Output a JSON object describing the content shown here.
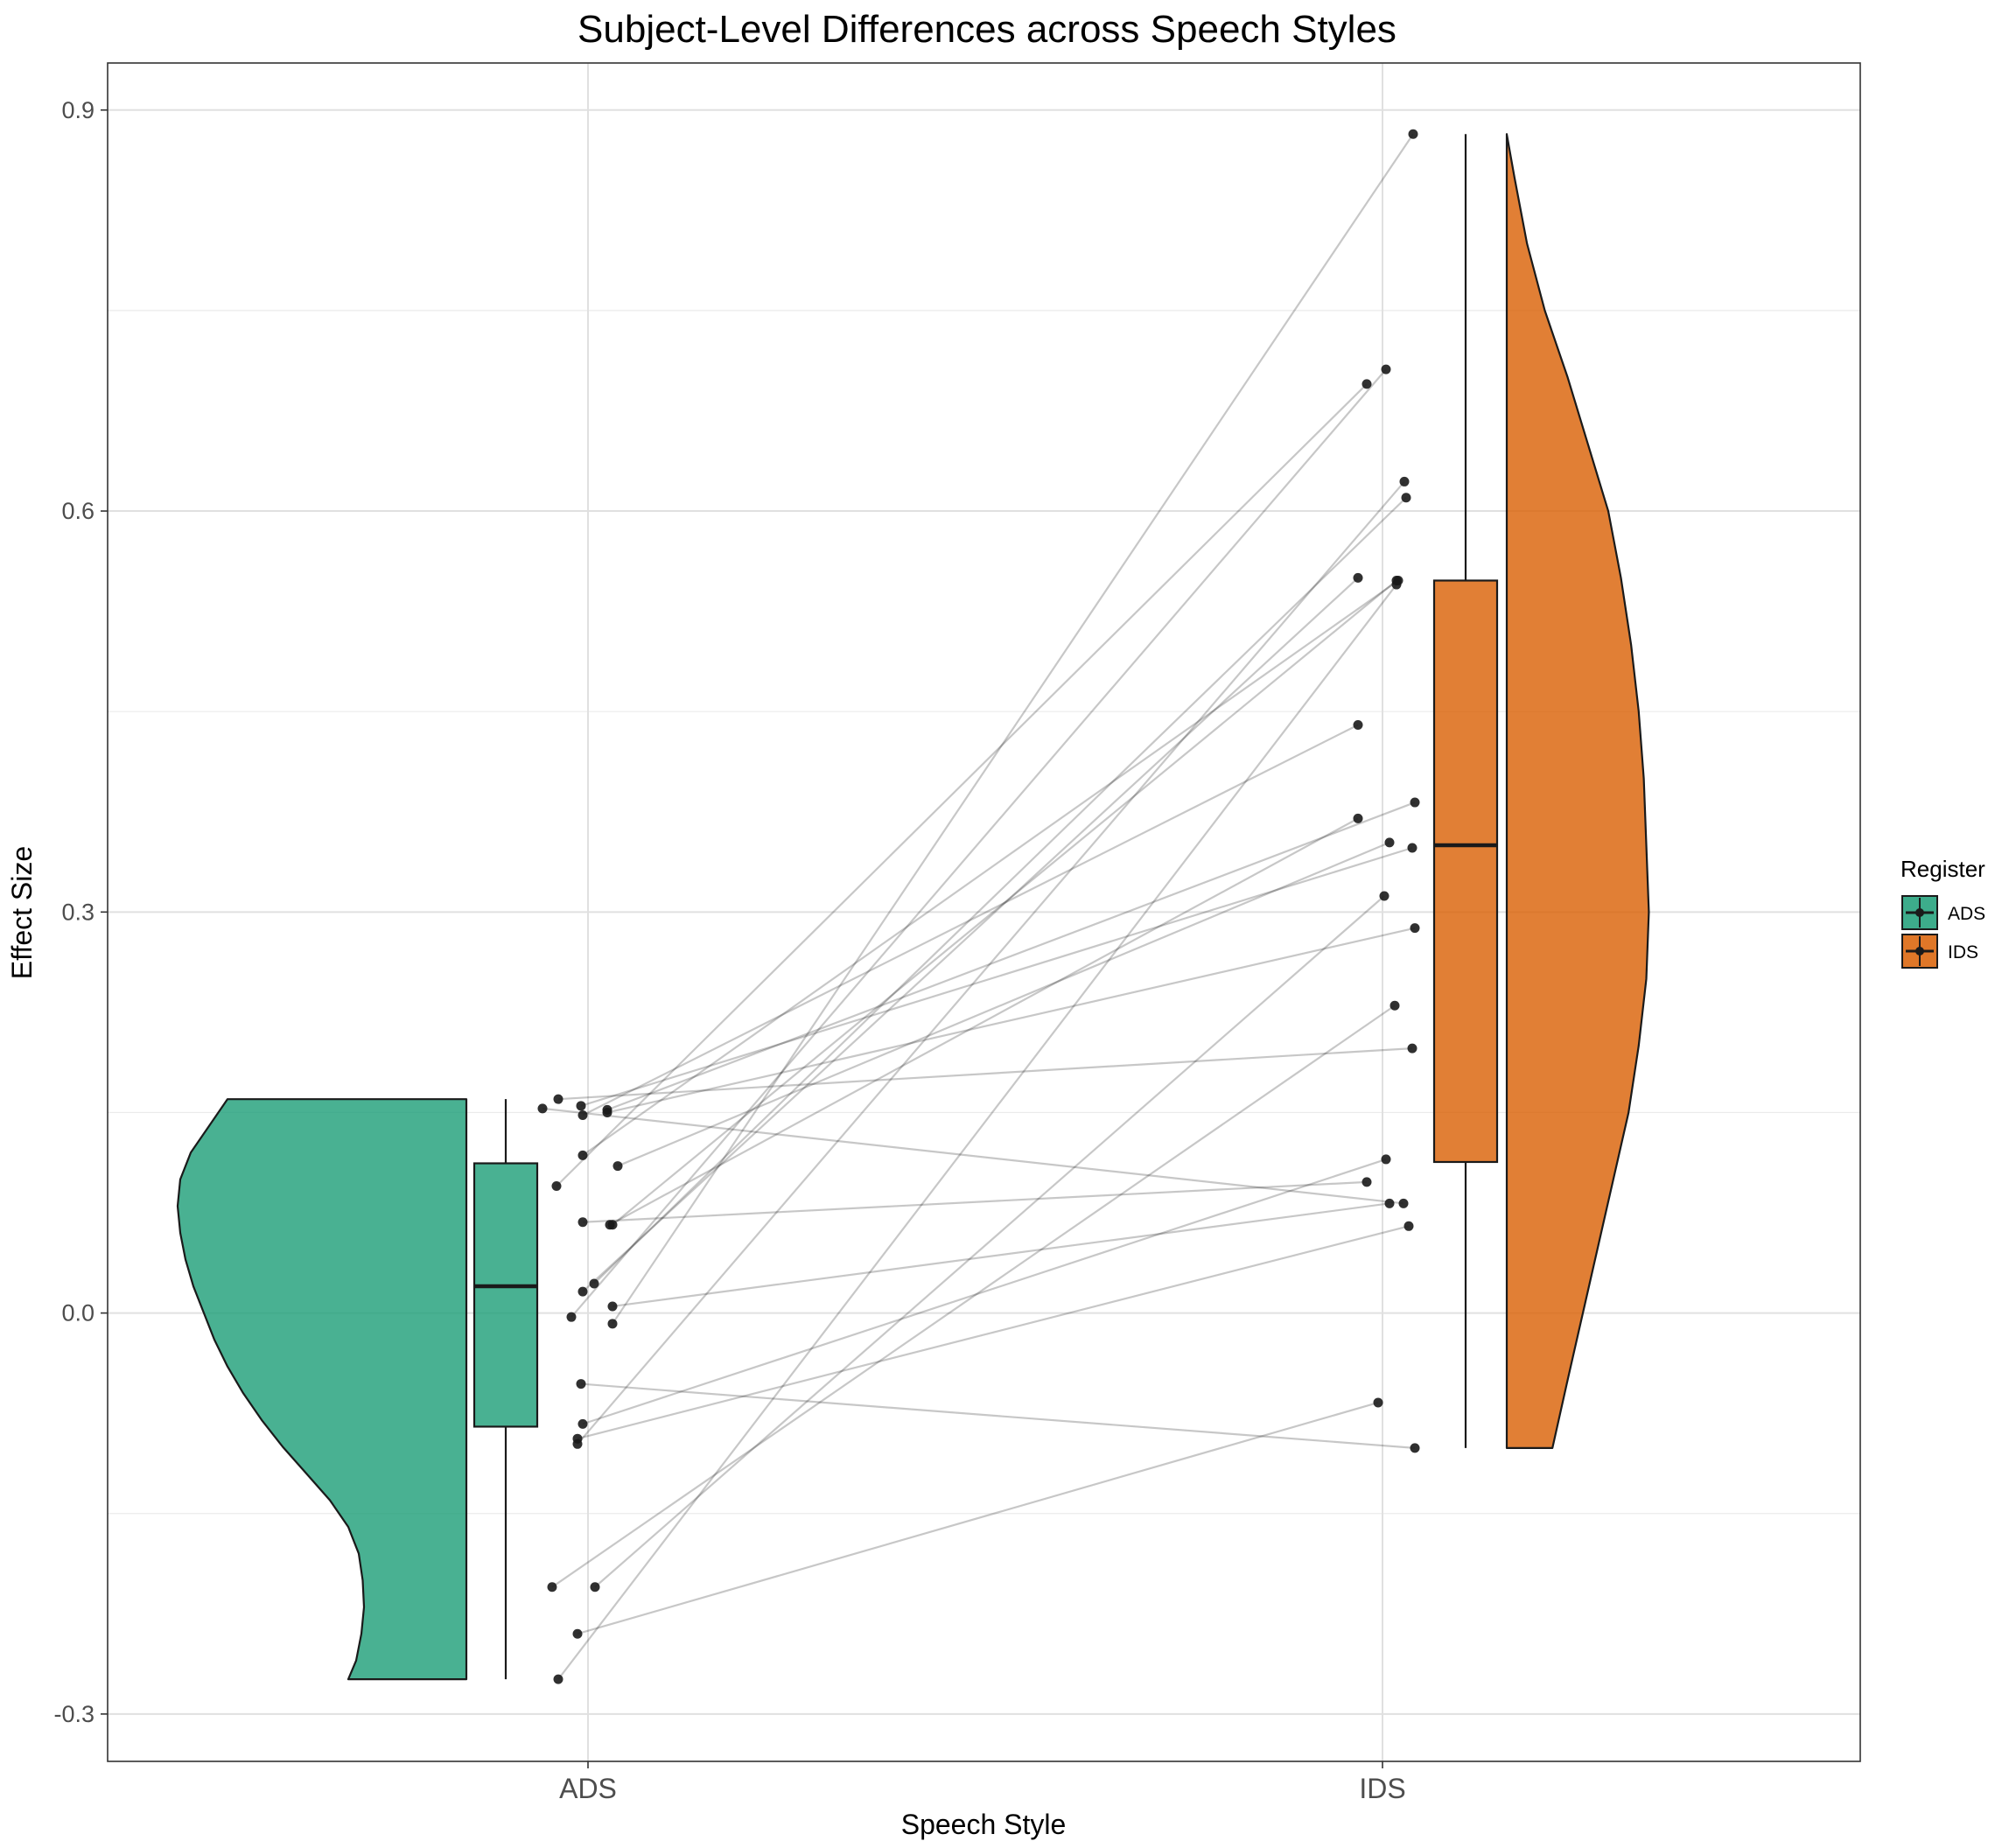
{
  "chart_data": {
    "type": "raincloud",
    "title": "Subject-Level Differences across Speech Styles",
    "xlabel": "Speech Style",
    "ylabel": "Effect Size",
    "categories": [
      "ADS",
      "IDS"
    ],
    "ylim": [
      -0.32,
      0.93
    ],
    "yticks": [
      -0.3,
      0.0,
      0.3,
      0.6,
      0.9
    ],
    "ytick_labels": [
      "-0.3",
      "0.0",
      "0.3",
      "0.6",
      "0.9"
    ],
    "grid": true,
    "legend": {
      "title": "Register",
      "position": "right",
      "entries": [
        {
          "label": "ADS",
          "color": "#1b9e77"
        },
        {
          "label": "IDS",
          "color": "#d95f02"
        }
      ]
    },
    "colors": {
      "ADS": "#1b9e77",
      "IDS": "#d95f02"
    },
    "boxplots": {
      "ADS": {
        "min": -0.274,
        "q1": -0.085,
        "median": 0.02,
        "q3": 0.112,
        "max": 0.16
      },
      "IDS": {
        "min": -0.101,
        "q1": 0.113,
        "median": 0.35,
        "q3": 0.548,
        "max": 0.882
      }
    },
    "density_profile": {
      "ADS": [
        [
          -0.274,
          0.45
        ],
        [
          -0.26,
          0.42
        ],
        [
          -0.24,
          0.4
        ],
        [
          -0.22,
          0.39
        ],
        [
          -0.2,
          0.395
        ],
        [
          -0.18,
          0.41
        ],
        [
          -0.16,
          0.45
        ],
        [
          -0.14,
          0.52
        ],
        [
          -0.12,
          0.61
        ],
        [
          -0.1,
          0.7
        ],
        [
          -0.08,
          0.78
        ],
        [
          -0.06,
          0.85
        ],
        [
          -0.04,
          0.91
        ],
        [
          -0.02,
          0.96
        ],
        [
          0.0,
          1.0
        ],
        [
          0.02,
          1.04
        ],
        [
          0.04,
          1.07
        ],
        [
          0.06,
          1.09
        ],
        [
          0.08,
          1.1
        ],
        [
          0.1,
          1.09
        ],
        [
          0.12,
          1.05
        ],
        [
          0.14,
          0.98
        ],
        [
          0.16,
          0.91
        ]
      ],
      "IDS": [
        [
          -0.101,
          0.18
        ],
        [
          -0.05,
          0.24
        ],
        [
          0.0,
          0.3
        ],
        [
          0.05,
          0.36
        ],
        [
          0.1,
          0.42
        ],
        [
          0.15,
          0.48
        ],
        [
          0.2,
          0.52
        ],
        [
          0.25,
          0.55
        ],
        [
          0.3,
          0.56
        ],
        [
          0.35,
          0.55
        ],
        [
          0.4,
          0.54
        ],
        [
          0.45,
          0.52
        ],
        [
          0.5,
          0.49
        ],
        [
          0.55,
          0.45
        ],
        [
          0.6,
          0.4
        ],
        [
          0.65,
          0.32
        ],
        [
          0.7,
          0.24
        ],
        [
          0.75,
          0.15
        ],
        [
          0.8,
          0.08
        ],
        [
          0.85,
          0.03
        ],
        [
          0.882,
          0.0
        ]
      ]
    },
    "subjects": [
      {
        "ads": 0.153,
        "ids": 0.082
      },
      {
        "ads": 0.16,
        "ids": 0.198
      },
      {
        "ads": 0.15,
        "ids": 0.288
      },
      {
        "ads": 0.155,
        "ids": 0.348
      },
      {
        "ads": 0.152,
        "ids": 0.382
      },
      {
        "ads": 0.148,
        "ids": 0.44
      },
      {
        "ads": 0.11,
        "ids": 0.352
      },
      {
        "ads": 0.118,
        "ids": 0.548
      },
      {
        "ads": 0.095,
        "ids": 0.695
      },
      {
        "ads": 0.068,
        "ids": 0.098
      },
      {
        "ads": 0.066,
        "ids": 0.548
      },
      {
        "ads": 0.066,
        "ids": 0.37
      },
      {
        "ads": 0.022,
        "ids": 0.61
      },
      {
        "ads": 0.016,
        "ids": 0.55
      },
      {
        "ads": 0.005,
        "ids": 0.082
      },
      {
        "ads": -0.003,
        "ids": 0.706
      },
      {
        "ads": -0.008,
        "ids": 0.882
      },
      {
        "ads": -0.053,
        "ids": -0.101
      },
      {
        "ads": -0.083,
        "ids": 0.115
      },
      {
        "ads": -0.094,
        "ids": 0.065
      },
      {
        "ads": -0.098,
        "ids": 0.622
      },
      {
        "ads": -0.205,
        "ids": 0.23
      },
      {
        "ads": -0.205,
        "ids": 0.312
      },
      {
        "ads": -0.24,
        "ids": -0.067
      },
      {
        "ads": -0.274,
        "ids": 0.545
      }
    ]
  }
}
